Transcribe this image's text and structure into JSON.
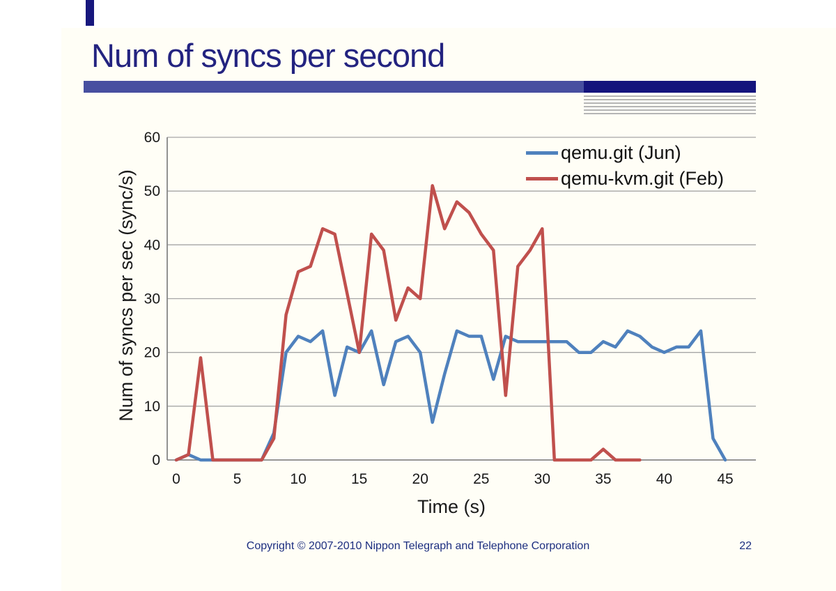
{
  "slide": {
    "title": "Num of syncs per second",
    "footer_copyright": "Copyright © 2007-2010 Nippon Telegraph and Telephone Corporation",
    "page_number": "22",
    "colors": {
      "title_text": "#232380",
      "band_left": "#474fa0",
      "band_right": "#14147c",
      "footer_text": "#1c2e80"
    }
  },
  "chart_data": {
    "type": "line",
    "title": "",
    "xlabel": "Time (s)",
    "ylabel": "Num of syncs per sec (sync/s)",
    "xlim": [
      0,
      45
    ],
    "ylim": [
      0,
      60
    ],
    "xticks": [
      0,
      5,
      10,
      15,
      20,
      25,
      30,
      35,
      40,
      45
    ],
    "yticks": [
      0,
      10,
      20,
      30,
      40,
      50,
      60
    ],
    "grid": "horizontal",
    "legend_position": "top-right",
    "gridline_color": "#a6a6a6",
    "axis_color": "#878787",
    "series": [
      {
        "name": "qemu.git (Jun)",
        "color": "#4F81BD",
        "x": [
          0,
          1,
          2,
          3,
          4,
          5,
          6,
          7,
          8,
          9,
          10,
          11,
          12,
          13,
          14,
          15,
          16,
          17,
          18,
          19,
          20,
          21,
          22,
          23,
          24,
          25,
          26,
          27,
          28,
          29,
          30,
          31,
          32,
          33,
          34,
          35,
          36,
          37,
          38,
          39,
          40,
          41,
          42,
          43,
          44,
          45
        ],
        "values": [
          0,
          1,
          0,
          0,
          0,
          0,
          0,
          0,
          5,
          20,
          23,
          22,
          24,
          12,
          21,
          20,
          24,
          14,
          22,
          23,
          20,
          7,
          16,
          24,
          23,
          23,
          15,
          23,
          22,
          22,
          22,
          22,
          22,
          20,
          20,
          22,
          21,
          24,
          23,
          21,
          20,
          21,
          21,
          24,
          4,
          0
        ]
      },
      {
        "name": "qemu-kvm.git (Feb)",
        "color": "#C0504D",
        "x": [
          0,
          1,
          2,
          3,
          4,
          5,
          6,
          7,
          8,
          9,
          10,
          11,
          12,
          13,
          14,
          15,
          16,
          17,
          18,
          19,
          20,
          21,
          22,
          23,
          24,
          25,
          26,
          27,
          28,
          29,
          30,
          31,
          32,
          33,
          34,
          35,
          36,
          37,
          38
        ],
        "values": [
          0,
          1,
          19,
          0,
          0,
          0,
          0,
          0,
          4,
          27,
          35,
          36,
          43,
          42,
          31,
          20,
          42,
          39,
          26,
          32,
          30,
          51,
          43,
          48,
          46,
          42,
          39,
          12,
          36,
          39,
          43,
          0,
          0,
          0,
          0,
          2,
          0,
          0,
          0
        ]
      }
    ]
  }
}
